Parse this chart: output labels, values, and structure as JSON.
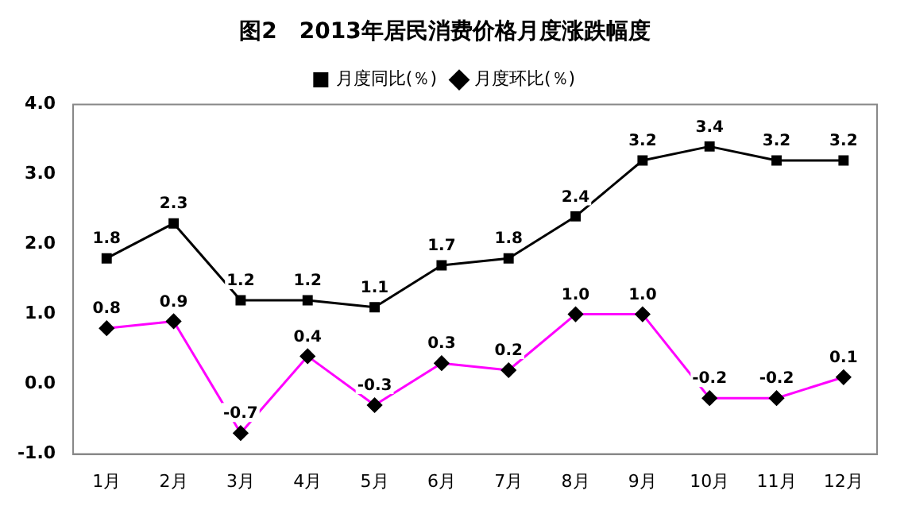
{
  "chart_data": {
    "type": "line",
    "title": "图2　2013年居民消费价格月度涨跌幅度",
    "categories": [
      "1月",
      "2月",
      "3月",
      "4月",
      "5月",
      "6月",
      "7月",
      "8月",
      "9月",
      "10月",
      "11月",
      "12月"
    ],
    "series": [
      {
        "name": "月度同比(％)",
        "color": "#000000",
        "marker": "square",
        "values": [
          1.8,
          2.3,
          1.2,
          1.2,
          1.1,
          1.7,
          1.8,
          2.4,
          3.2,
          3.4,
          3.2,
          3.2
        ],
        "value_labels": [
          "1.8",
          "2.3",
          "1.2",
          "1.2",
          "1.1",
          "1.7",
          "1.8",
          "2.4",
          "3.2",
          "3.4",
          "3.2",
          "3.2"
        ]
      },
      {
        "name": "月度环比(％)",
        "color": "#ff00ff",
        "marker": "diamond",
        "values": [
          0.8,
          0.9,
          -0.7,
          0.4,
          -0.3,
          0.3,
          0.2,
          1.0,
          1.0,
          -0.2,
          -0.2,
          0.1
        ],
        "value_labels": [
          "0.8",
          "0.9",
          "-0.7",
          "0.4",
          "-0.3",
          "0.3",
          "0.2",
          "1.0",
          "1.0",
          "-0.2",
          "-0.2",
          "0.1"
        ]
      }
    ],
    "ylim": [
      -1,
      4
    ],
    "yticks": [
      {
        "value": -1,
        "label": "-1.0"
      },
      {
        "value": 0,
        "label": "0.0"
      },
      {
        "value": 1,
        "label": "1.0"
      },
      {
        "value": 2,
        "label": "2.0"
      },
      {
        "value": 3,
        "label": "3.0"
      },
      {
        "value": 4,
        "label": "4.0"
      }
    ],
    "legend": "top",
    "line_style": "solid"
  }
}
